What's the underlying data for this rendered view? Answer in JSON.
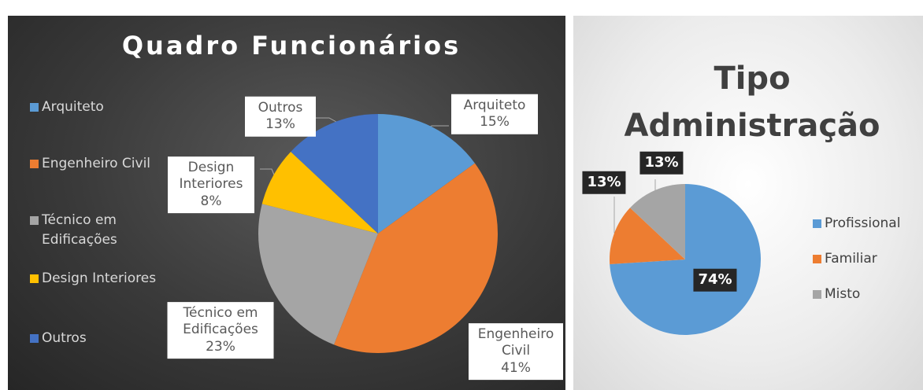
{
  "chart_data": [
    {
      "type": "pie",
      "title": "Quadro Funcionários",
      "categories": [
        "Arquiteto",
        "Engenheiro Civil",
        "Técnico em Edificações",
        "Design Interiores",
        "Outros"
      ],
      "values": [
        15,
        41,
        23,
        8,
        13
      ],
      "value_labels": [
        "15%",
        "41%",
        "23%",
        "8%",
        "13%"
      ],
      "colors": [
        "#5b9bd5",
        "#ed7d31",
        "#a5a5a5",
        "#ffc000",
        "#4472c4"
      ],
      "legend": "left"
    },
    {
      "type": "pie",
      "title": "Tipo Administração",
      "categories": [
        "Profissional",
        "Familiar",
        "Misto"
      ],
      "values": [
        74,
        13,
        13
      ],
      "value_labels": [
        "74%",
        "13%",
        "13%"
      ],
      "colors": [
        "#5b9bd5",
        "#ed7d31",
        "#a5a5a5"
      ],
      "legend": "right"
    }
  ]
}
